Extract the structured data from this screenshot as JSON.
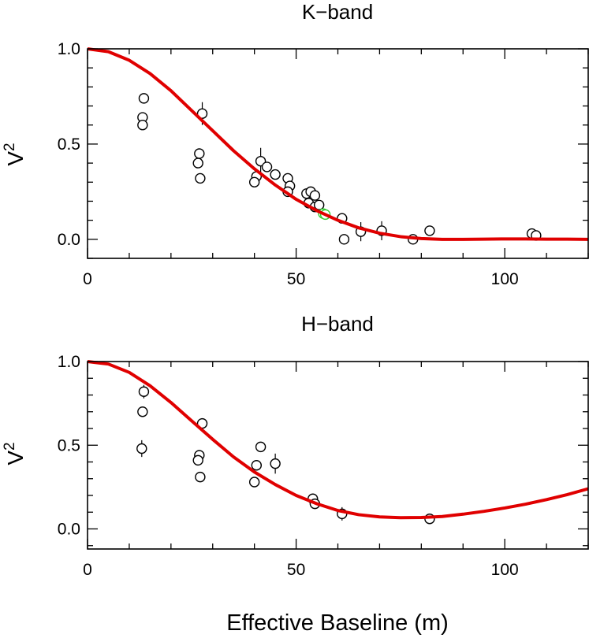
{
  "xlabel": "Effective Baseline (m)",
  "chart_data": [
    {
      "type": "scatter",
      "title": "K−band",
      "ylabel": "V",
      "ylabel_sup": "2",
      "xlim": [
        0,
        120
      ],
      "ylim": [
        -0.1,
        1.0
      ],
      "xticks": [
        0,
        50,
        100
      ],
      "xtick_labels": [
        "0",
        "50",
        "100"
      ],
      "yticks": [
        0.0,
        0.5,
        1.0
      ],
      "ytick_labels": [
        "0.0",
        "0.5",
        "1.0"
      ],
      "point_color": "#000000",
      "highlight_color": "#33cc33",
      "model_color": "#e00000",
      "model_curve": {
        "x": [
          0,
          5,
          10,
          15,
          20,
          25,
          30,
          35,
          40,
          45,
          50,
          55,
          60,
          65,
          70,
          75,
          80,
          85,
          90,
          95,
          100,
          105,
          110,
          115,
          120
        ],
        "y": [
          1.0,
          0.985,
          0.94,
          0.87,
          0.78,
          0.675,
          0.57,
          0.465,
          0.37,
          0.285,
          0.21,
          0.15,
          0.1,
          0.06,
          0.032,
          0.014,
          0.004,
          0.0,
          0.0,
          0.001,
          0.002,
          0.002,
          0.001,
          0.001,
          0.0
        ]
      },
      "points": [
        {
          "x": 13.5,
          "y": 0.74,
          "err": 0.02
        },
        {
          "x": 13.2,
          "y": 0.64,
          "err": 0.02
        },
        {
          "x": 13.2,
          "y": 0.6,
          "err": 0.02
        },
        {
          "x": 27.5,
          "y": 0.66,
          "err": 0.06
        },
        {
          "x": 26.8,
          "y": 0.45,
          "err": 0.02
        },
        {
          "x": 26.5,
          "y": 0.4,
          "err": 0.02
        },
        {
          "x": 27.0,
          "y": 0.32,
          "err": 0.02
        },
        {
          "x": 41.5,
          "y": 0.41,
          "err": 0.07
        },
        {
          "x": 43.0,
          "y": 0.38,
          "err": 0.02
        },
        {
          "x": 40.5,
          "y": 0.33,
          "err": 0.02
        },
        {
          "x": 40.0,
          "y": 0.3,
          "err": 0.02
        },
        {
          "x": 45.0,
          "y": 0.34,
          "err": 0.02
        },
        {
          "x": 48.0,
          "y": 0.32,
          "err": 0.02
        },
        {
          "x": 48.5,
          "y": 0.28,
          "err": 0.02
        },
        {
          "x": 48.0,
          "y": 0.25,
          "err": 0.02
        },
        {
          "x": 52.5,
          "y": 0.24,
          "err": 0.02
        },
        {
          "x": 53.5,
          "y": 0.25,
          "err": 0.02
        },
        {
          "x": 54.5,
          "y": 0.23,
          "err": 0.02
        },
        {
          "x": 53.0,
          "y": 0.19,
          "err": 0.02
        },
        {
          "x": 54.5,
          "y": 0.17,
          "err": 0.02
        },
        {
          "x": 55.5,
          "y": 0.18,
          "err": 0.02
        },
        {
          "x": 61.0,
          "y": 0.11,
          "err": 0.02
        },
        {
          "x": 61.5,
          "y": 0.0,
          "err": 0.02
        },
        {
          "x": 65.5,
          "y": 0.04,
          "err": 0.05
        },
        {
          "x": 70.5,
          "y": 0.045,
          "err": 0.05
        },
        {
          "x": 78.0,
          "y": 0.0,
          "err": 0.02
        },
        {
          "x": 82.0,
          "y": 0.045,
          "err": 0.02
        },
        {
          "x": 106.5,
          "y": 0.03,
          "err": 0.01
        },
        {
          "x": 107.5,
          "y": 0.02,
          "err": 0.01
        }
      ],
      "highlight_points": [
        {
          "x": 56.5,
          "y": 0.135,
          "err": 0.01
        },
        {
          "x": 57.0,
          "y": 0.13,
          "err": 0.01
        }
      ]
    },
    {
      "type": "scatter",
      "title": "H−band",
      "ylabel": "V",
      "ylabel_sup": "2",
      "xlim": [
        0,
        120
      ],
      "ylim": [
        -0.12,
        1.0
      ],
      "xticks": [
        0,
        50,
        100
      ],
      "xtick_labels": [
        "0",
        "50",
        "100"
      ],
      "yticks": [
        0.0,
        0.5,
        1.0
      ],
      "ytick_labels": [
        "0.0",
        "0.5",
        "1.0"
      ],
      "point_color": "#000000",
      "model_color": "#e00000",
      "model_curve": {
        "x": [
          0,
          5,
          10,
          15,
          20,
          25,
          30,
          35,
          40,
          45,
          50,
          55,
          60,
          65,
          70,
          75,
          80,
          85,
          90,
          95,
          100,
          105,
          110,
          115,
          120
        ],
        "y": [
          1.0,
          0.985,
          0.935,
          0.855,
          0.755,
          0.645,
          0.535,
          0.43,
          0.34,
          0.265,
          0.2,
          0.15,
          0.11,
          0.085,
          0.072,
          0.067,
          0.068,
          0.074,
          0.088,
          0.105,
          0.125,
          0.148,
          0.175,
          0.205,
          0.24
        ]
      },
      "points": [
        {
          "x": 13.5,
          "y": 0.82,
          "err": 0.04
        },
        {
          "x": 13.2,
          "y": 0.7,
          "err": 0.02
        },
        {
          "x": 13.0,
          "y": 0.48,
          "err": 0.05
        },
        {
          "x": 27.5,
          "y": 0.63,
          "err": 0.03
        },
        {
          "x": 26.8,
          "y": 0.44,
          "err": 0.03
        },
        {
          "x": 26.5,
          "y": 0.41,
          "err": 0.03
        },
        {
          "x": 27.0,
          "y": 0.31,
          "err": 0.02
        },
        {
          "x": 40.0,
          "y": 0.28,
          "err": 0.02
        },
        {
          "x": 40.5,
          "y": 0.38,
          "err": 0.02
        },
        {
          "x": 41.5,
          "y": 0.49,
          "err": 0.02
        },
        {
          "x": 45.0,
          "y": 0.39,
          "err": 0.06
        },
        {
          "x": 54.0,
          "y": 0.18,
          "err": 0.02
        },
        {
          "x": 54.5,
          "y": 0.15,
          "err": 0.02
        },
        {
          "x": 61.0,
          "y": 0.09,
          "err": 0.04
        },
        {
          "x": 82.0,
          "y": 0.06,
          "err": 0.02
        }
      ]
    }
  ]
}
